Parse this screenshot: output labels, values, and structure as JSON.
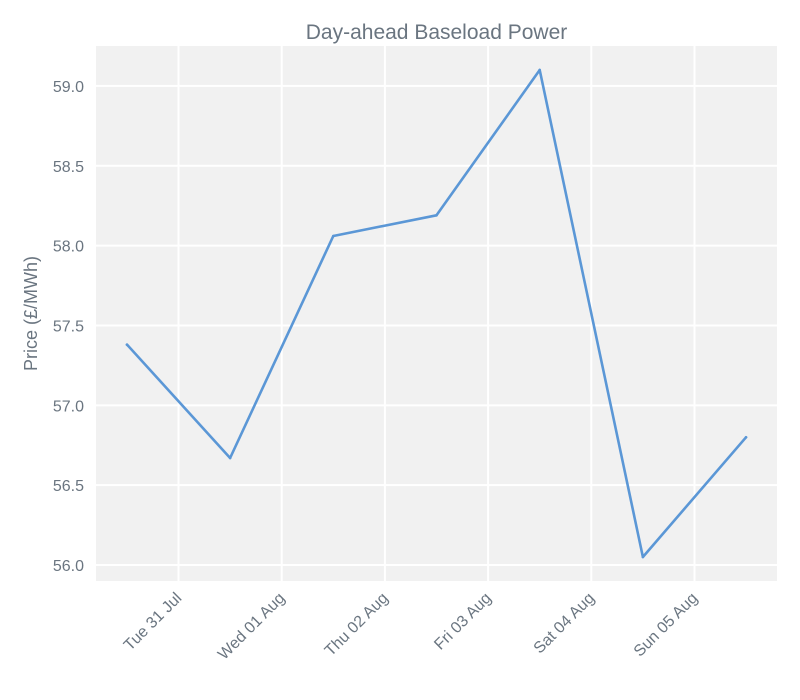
{
  "chart_data": {
    "type": "line",
    "title": "Day-ahead Baseload Power",
    "xlabel": "",
    "ylabel": "Price (£/MWh)",
    "ylim": [
      55.9,
      59.25
    ],
    "x_ticks": [
      "Tue 31 Jul",
      "Wed 01 Aug",
      "Thu 02 Aug",
      "Fri 03 Aug",
      "Sat 04 Aug",
      "Sun 05 Aug"
    ],
    "y_ticks": [
      "56.0",
      "56.5",
      "57.0",
      "57.5",
      "58.0",
      "58.5",
      "59.0"
    ],
    "grid": true,
    "series": [
      {
        "color": "#5b97d6",
        "points": [
          {
            "x": "2018-07-30 12:00",
            "y": 57.38
          },
          {
            "x": "2018-07-31 12:00",
            "y": 56.67
          },
          {
            "x": "2018-08-01 12:00",
            "y": 58.06
          },
          {
            "x": "2018-08-02 12:00",
            "y": 58.19
          },
          {
            "x": "2018-08-03 12:00",
            "y": 59.1
          },
          {
            "x": "2018-08-04 12:00",
            "y": 56.05
          },
          {
            "x": "2018-08-05 12:00",
            "y": 56.8
          }
        ]
      }
    ]
  }
}
